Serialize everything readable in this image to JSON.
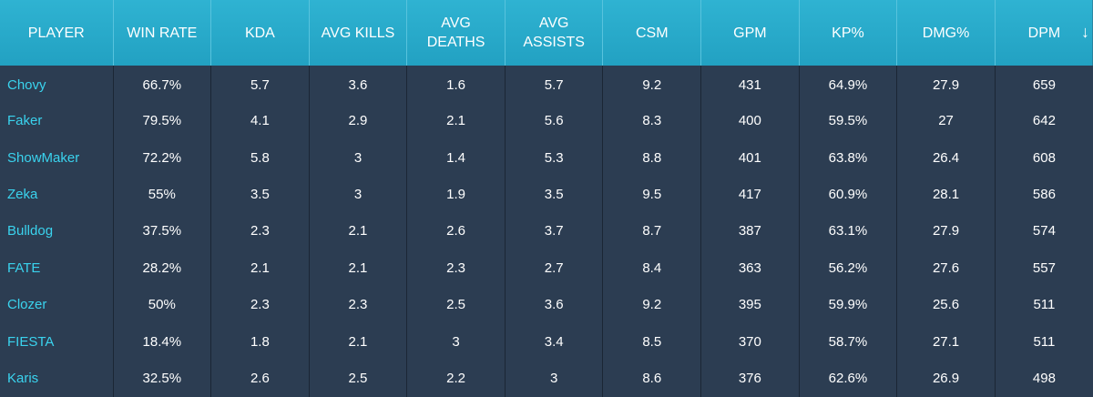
{
  "header": {
    "columns": [
      "PLAYER",
      "WIN RATE",
      "KDA",
      "AVG KILLS",
      "AVG\nDEATHS",
      "AVG\nASSISTS",
      "CSM",
      "GPM",
      "KP%",
      "DMG%",
      "DPM"
    ],
    "sort_icon": "arrow-down-icon",
    "sort_glyph": "↓"
  },
  "rows": [
    [
      "Chovy",
      "66.7%",
      "5.7",
      "3.6",
      "1.6",
      "5.7",
      "9.2",
      "431",
      "64.9%",
      "27.9",
      "659"
    ],
    [
      "Faker",
      "79.5%",
      "4.1",
      "2.9",
      "2.1",
      "5.6",
      "8.3",
      "400",
      "59.5%",
      "27",
      "642"
    ],
    [
      "ShowMaker",
      "72.2%",
      "5.8",
      "3",
      "1.4",
      "5.3",
      "8.8",
      "401",
      "63.8%",
      "26.4",
      "608"
    ],
    [
      "Zeka",
      "55%",
      "3.5",
      "3",
      "1.9",
      "3.5",
      "9.5",
      "417",
      "60.9%",
      "28.1",
      "586"
    ],
    [
      "Bulldog",
      "37.5%",
      "2.3",
      "2.1",
      "2.6",
      "3.7",
      "8.7",
      "387",
      "63.1%",
      "27.9",
      "574"
    ],
    [
      "FATE",
      "28.2%",
      "2.1",
      "2.1",
      "2.3",
      "2.7",
      "8.4",
      "363",
      "56.2%",
      "27.6",
      "557"
    ],
    [
      "Clozer",
      "50%",
      "2.3",
      "2.3",
      "2.5",
      "3.6",
      "9.2",
      "395",
      "59.9%",
      "25.6",
      "511"
    ],
    [
      "FIESTA",
      "18.4%",
      "1.8",
      "2.1",
      "3",
      "3.4",
      "8.5",
      "370",
      "58.7%",
      "27.1",
      "511"
    ],
    [
      "Karis",
      "32.5%",
      "2.6",
      "2.5",
      "2.2",
      "3",
      "8.6",
      "376",
      "62.6%",
      "26.9",
      "498"
    ]
  ],
  "colors": {
    "header_bg": "#27a8c8",
    "body_bg": "#2c3d52",
    "player_link": "#3ad3ee",
    "text": "#ffffff"
  }
}
